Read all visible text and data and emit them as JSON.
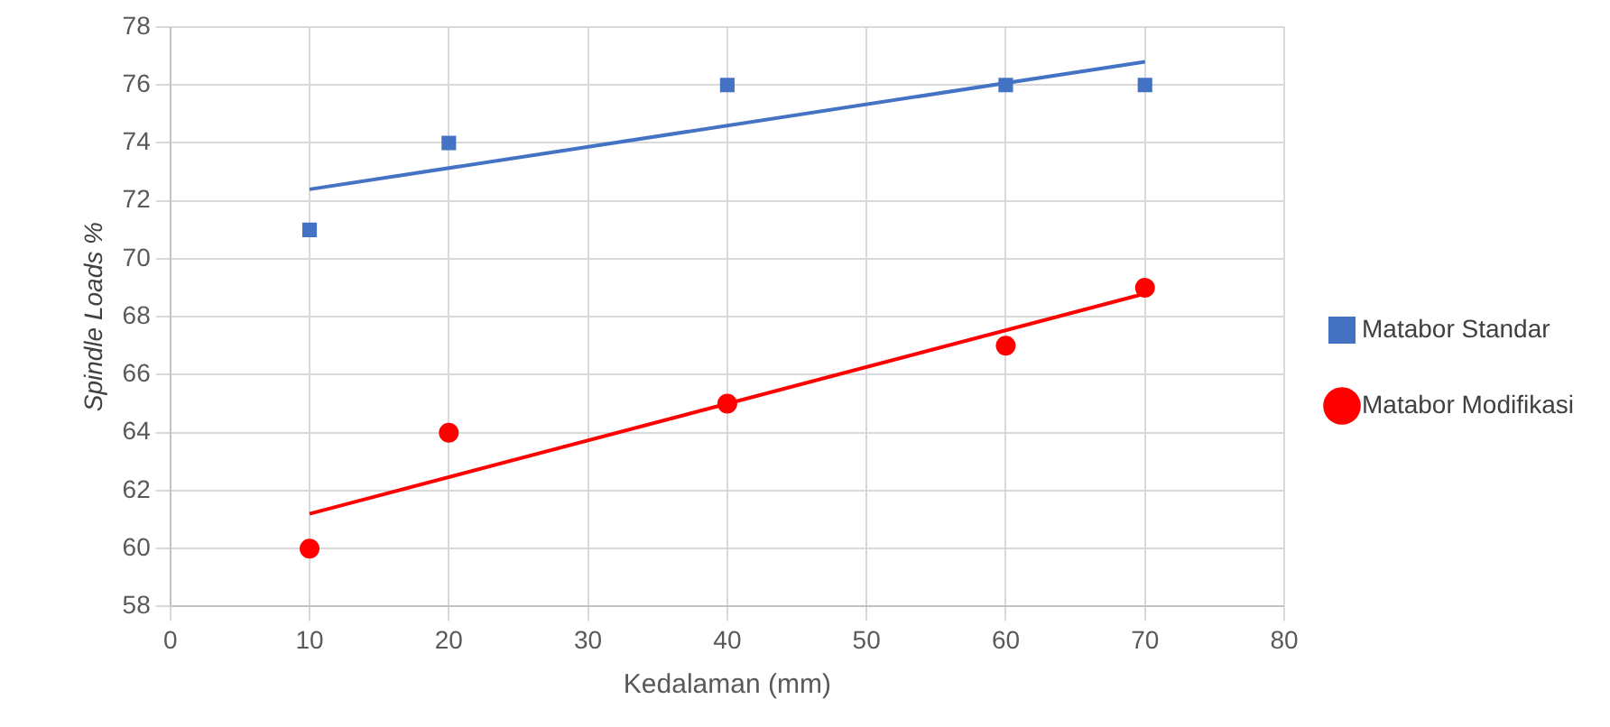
{
  "chart_data": {
    "type": "scatter",
    "xlabel": "Kedalaman (mm)",
    "ylabel": "Spindle Loads %",
    "xlim": [
      0,
      80
    ],
    "xticks": [
      0,
      10,
      20,
      30,
      40,
      50,
      60,
      70,
      80
    ],
    "ylim": [
      58,
      78
    ],
    "yticks": [
      58,
      60,
      62,
      64,
      66,
      68,
      70,
      72,
      74,
      76,
      78
    ],
    "grid": true,
    "legend": "right",
    "series": [
      {
        "name": "Matabor Standar",
        "color": "#4472c4",
        "marker": "square",
        "x": [
          10,
          20,
          40,
          60,
          70
        ],
        "values": [
          71,
          74,
          76,
          76,
          76
        ]
      },
      {
        "name": "Matabor Modifikasi",
        "color": "#ff0000",
        "marker": "circle",
        "x": [
          10,
          20,
          40,
          60,
          70
        ],
        "values": [
          60,
          64,
          65,
          67,
          69
        ]
      },
      {
        "type": "line",
        "color": "#4472c4",
        "marker": "none",
        "x": [
          10,
          70
        ],
        "values": [
          72.4,
          76.8
        ]
      },
      {
        "type": "line",
        "color": "#ff0000",
        "marker": "none",
        "x": [
          10,
          70
        ],
        "values": [
          61.2,
          68.8
        ]
      }
    ]
  }
}
